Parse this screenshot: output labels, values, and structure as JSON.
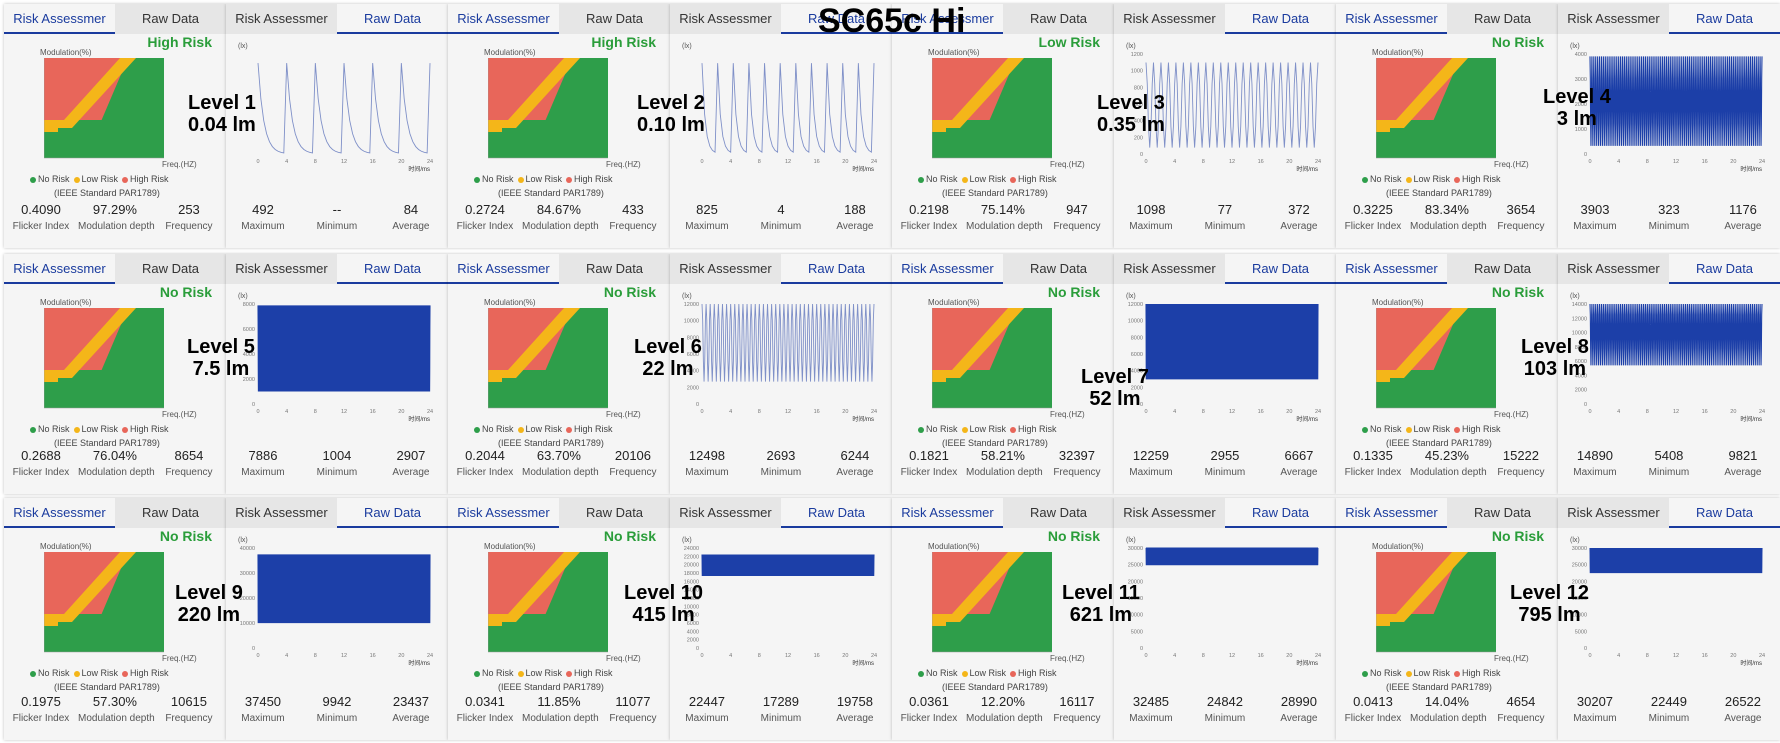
{
  "page_title": "SC65c Hi",
  "tabs": {
    "risk": "Risk Assessmer",
    "raw": "Raw Data"
  },
  "risk_chart": {
    "ylabel": "Modulation(%)",
    "xlabel": "Freq.(HZ)",
    "standard": "(IEEE Standard PAR1789)",
    "legend": [
      "No Risk",
      "Low Risk",
      "High Risk"
    ],
    "colors": {
      "no_risk": "#2e9e4a",
      "low_risk": "#f4b619",
      "high_risk": "#e8665a",
      "accent": "#1a3b9e",
      "label_green": "#2a9d3a"
    }
  },
  "stat_labels": {
    "flicker_index": "Flicker Index",
    "modulation_depth": "Modulation depth",
    "frequency": "Frequency",
    "maximum": "Maximum",
    "minimum": "Minimum",
    "average": "Average"
  },
  "raw_chart": {
    "ylabel": "(lx)",
    "xlabel": "时间/ms",
    "xticks": [
      "0",
      "4",
      "8",
      "12",
      "16",
      "20",
      "24"
    ]
  },
  "chart_data": [
    {
      "type": "line",
      "level": "Level 1",
      "lumens": "0.04 lm",
      "risk": "High Risk",
      "flicker_index": "0.4090",
      "modulation_depth": "97.29%",
      "frequency": "253",
      "maximum": "492",
      "minimum": "--",
      "average": "84",
      "pulses": 6,
      "yticks": [
        "",
        "",
        "",
        "",
        "",
        ""
      ]
    },
    {
      "type": "line",
      "level": "Level 2",
      "lumens": "0.10 lm",
      "risk": "High Risk",
      "flicker_index": "0.2724",
      "modulation_depth": "84.67%",
      "frequency": "433",
      "maximum": "825",
      "minimum": "4",
      "average": "188",
      "pulses": 11,
      "yticks": [
        "",
        "",
        "",
        "",
        "",
        ""
      ]
    },
    {
      "type": "line",
      "level": "Level 3",
      "lumens": "0.35 lm",
      "risk": "Low Risk",
      "flicker_index": "0.2198",
      "modulation_depth": "75.14%",
      "frequency": "947",
      "maximum": "1098",
      "minimum": "77",
      "average": "372",
      "pulses": 23,
      "yticks": [
        "0",
        "200",
        "400",
        "600",
        "800",
        "1000",
        "1200"
      ]
    },
    {
      "type": "line",
      "level": "Level 4",
      "lumens": "3 lm",
      "risk": "No Risk",
      "flicker_index": "0.3225",
      "modulation_depth": "83.34%",
      "frequency": "3654",
      "maximum": "3903",
      "minimum": "323",
      "average": "1176",
      "pulses": 90,
      "yticks": [
        "0",
        "1000",
        "2000",
        "3000",
        "4000"
      ]
    },
    {
      "type": "line",
      "level": "Level 5",
      "lumens": "7.5 lm",
      "risk": "No Risk",
      "flicker_index": "0.2688",
      "modulation_depth": "76.04%",
      "frequency": "8654",
      "maximum": "7886",
      "minimum": "1004",
      "average": "2907",
      "pulses": 210,
      "yticks": [
        "0",
        "2000",
        "4000",
        "6000",
        "8000"
      ]
    },
    {
      "type": "line",
      "level": "Level 6",
      "lumens": "22 lm",
      "risk": "No Risk",
      "flicker_index": "0.2044",
      "modulation_depth": "63.70%",
      "frequency": "20106",
      "maximum": "12498",
      "minimum": "2693",
      "average": "6244",
      "pulses": 42,
      "yticks": [
        "0",
        "2000",
        "4000",
        "6000",
        "8000",
        "10000",
        "12000"
      ]
    },
    {
      "type": "line",
      "level": "Level 7",
      "lumens": "52 lm",
      "risk": "No Risk",
      "flicker_index": "0.1821",
      "modulation_depth": "58.21%",
      "frequency": "32397",
      "maximum": "12259",
      "minimum": "2955",
      "average": "6667",
      "pulses": 320,
      "yticks": [
        "0",
        "2000",
        "4000",
        "6000",
        "8000",
        "10000",
        "12000"
      ]
    },
    {
      "type": "line",
      "level": "Level 8",
      "lumens": "103 lm",
      "risk": "No Risk",
      "flicker_index": "0.1335",
      "modulation_depth": "45.23%",
      "frequency": "15222",
      "maximum": "14890",
      "minimum": "5408",
      "average": "9821",
      "pulses": 90,
      "yticks": [
        "0",
        "2000",
        "4000",
        "6000",
        "8000",
        "10000",
        "12000",
        "14000"
      ]
    },
    {
      "type": "line",
      "level": "Level 9",
      "lumens": "220 lm",
      "risk": "No Risk",
      "flicker_index": "0.1975",
      "modulation_depth": "57.30%",
      "frequency": "10615",
      "maximum": "37450",
      "minimum": "9942",
      "average": "23437",
      "pulses": 400,
      "yticks": [
        "0",
        "10000",
        "20000",
        "30000",
        "40000"
      ]
    },
    {
      "type": "line",
      "level": "Level 10",
      "lumens": "415 lm",
      "risk": "No Risk",
      "flicker_index": "0.0341",
      "modulation_depth": "11.85%",
      "frequency": "11077",
      "maximum": "22447",
      "minimum": "17289",
      "average": "19758",
      "pulses": 300,
      "yticks": [
        "0",
        "2000",
        "4000",
        "6000",
        "8000",
        "10000",
        "12000",
        "14000",
        "16000",
        "18000",
        "20000",
        "22000",
        "24000"
      ]
    },
    {
      "type": "line",
      "level": "Level 11",
      "lumens": "621 lm",
      "risk": "No Risk",
      "flicker_index": "0.0361",
      "modulation_depth": "12.20%",
      "frequency": "16117",
      "maximum": "32485",
      "minimum": "24842",
      "average": "28990",
      "pulses": 300,
      "yticks": [
        "0",
        "5000",
        "10000",
        "15000",
        "20000",
        "25000",
        "30000"
      ]
    },
    {
      "type": "line",
      "level": "Level 12",
      "lumens": "795 lm",
      "risk": "No Risk",
      "flicker_index": "0.0413",
      "modulation_depth": "14.04%",
      "frequency": "4654",
      "maximum": "30207",
      "minimum": "22449",
      "average": "26522",
      "pulses": 300,
      "yticks": [
        "0",
        "5000",
        "10000",
        "15000",
        "20000",
        "25000",
        "30000"
      ]
    }
  ]
}
